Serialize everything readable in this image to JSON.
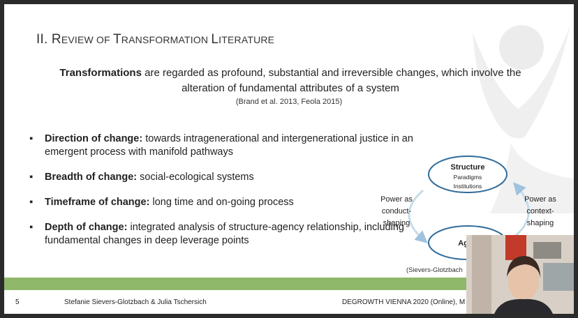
{
  "slide": {
    "title_parts": [
      "II. R",
      "EVIEW OF ",
      "T",
      "RANSFORMATION ",
      "L",
      "ITERATURE"
    ],
    "definition": {
      "term": "Transformations",
      "text": " are regarded as profound, substantial and irreversible changes, which involve the alteration of fundamental attributes of a system"
    },
    "citation": "(Brand et al. 2013, Feola 2015)",
    "bullets": [
      {
        "label": "Direction of change",
        "sep": ":",
        "text": " towards intragenerational and intergenerational justice in an emergent process with manifold pathways"
      },
      {
        "label": "Breadth of change",
        "sep": ":",
        "text": " social-ecological systems"
      },
      {
        "label": "Timeframe of change",
        "sep": ":",
        "text": " long time and on-going process"
      },
      {
        "label": "Depth of change",
        "sep": ":",
        "text": " integrated analysis of structure-agency relationship, including fundamental changes in deep leverage points"
      }
    ],
    "bullet_symbol": "▪",
    "diagram": {
      "structure_title": "Structure",
      "structure_sub1": "Paradigms",
      "structure_sub2": "Institutions",
      "left_label": [
        "Power as",
        "conduct-",
        "shaping"
      ],
      "right_label": [
        "Power as",
        "context-",
        "shaping"
      ],
      "agency_title": "Agen",
      "citation": "(Sievers-Glotzbach"
    },
    "footer": {
      "page_number": "5",
      "authors": "Stefanie Sievers-Glotzbach & Julia Tschersich",
      "event": "DEGROWTH VIENNA 2020 (Online), M"
    }
  },
  "colors": {
    "accent_green": "#8fb86a",
    "diagram_blue": "#2f6b9a",
    "background_dark": "#2b2b2b"
  },
  "icons": [
    "person-silhouette-watermark",
    "webcam-video"
  ]
}
